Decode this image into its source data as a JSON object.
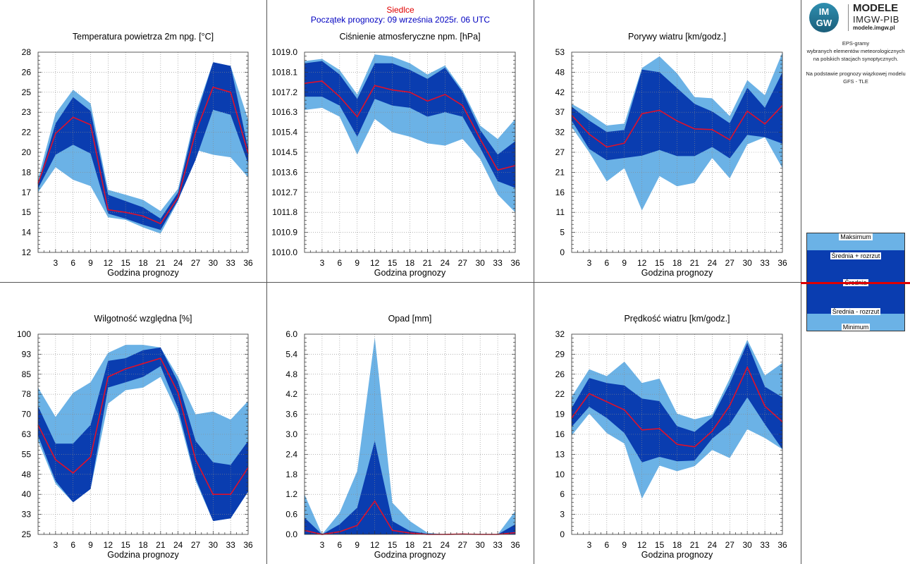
{
  "header": {
    "station": "Siedlce",
    "run": "Początek prognozy: 09 września 2025r. 06 UTC"
  },
  "logo": {
    "badge_top": "IM",
    "badge_bottom": "GW",
    "title": "MODELE",
    "subtitle": "IMGW-PIB",
    "url": "modele.imgw.pl"
  },
  "description": {
    "line1": "EPS-gramy",
    "line2": "wybranych elementów meteorologicznych",
    "line3": "na polskich stacjach  synoptycznych.",
    "line4": "Na podstawie prognozy wiązkowej modelu",
    "line5": "GFS - TLE"
  },
  "legend": {
    "max": "Maksimum",
    "plus": "Średnia + rozrzut",
    "mean": "Średnia",
    "minus": "Średnia - rozrzut",
    "min": "Minimum"
  },
  "colors": {
    "outer_band": "#6bb2e6",
    "inner_band": "#0a3db0",
    "mean_line": "#e0102a"
  },
  "chart_data": [
    {
      "type": "area",
      "title": "Temperatura powietrza 2m npg. [°C]",
      "xlabel": "Godzina prognozy",
      "ylim": [
        12,
        28
      ],
      "yticks": [
        "12",
        "14",
        "15",
        "17",
        "18",
        "20",
        "22",
        "23",
        "25",
        "26",
        "28"
      ],
      "ytick_values": [
        12,
        13.6,
        15.2,
        16.8,
        18.4,
        20,
        21.6,
        23.2,
        24.8,
        26.4,
        28
      ],
      "x": [
        0,
        3,
        6,
        9,
        12,
        15,
        18,
        21,
        24,
        27,
        30,
        33,
        36
      ],
      "xticks": [
        3,
        6,
        9,
        12,
        15,
        18,
        21,
        24,
        27,
        30,
        33,
        36
      ],
      "series": [
        {
          "name": "Maksimum",
          "values": [
            17.9,
            23.1,
            25.0,
            23.9,
            17.0,
            16.6,
            16.2,
            15.3,
            17.1,
            23.1,
            27.2,
            26.9,
            22.6
          ]
        },
        {
          "name": "Średnia + rozrzut",
          "values": [
            17.5,
            22.3,
            24.4,
            23.3,
            16.6,
            16.1,
            15.6,
            14.7,
            16.8,
            22.7,
            27.2,
            26.9,
            20.3
          ]
        },
        {
          "name": "Średnia",
          "values": [
            17.5,
            21.5,
            22.8,
            22.2,
            15.4,
            15.2,
            14.9,
            14.3,
            16.4,
            21.6,
            25.2,
            24.8,
            19.9
          ]
        },
        {
          "name": "Średnia - rozrzut",
          "values": [
            17.1,
            19.8,
            20.6,
            19.9,
            15.1,
            14.7,
            14.2,
            13.8,
            16.2,
            19.4,
            23.4,
            23.0,
            19.1
          ]
        },
        {
          "name": "Minimum",
          "values": [
            16.8,
            18.8,
            17.8,
            17.3,
            14.8,
            14.6,
            14.0,
            13.5,
            16.1,
            20.2,
            19.8,
            19.6,
            18.0
          ]
        }
      ]
    },
    {
      "type": "area",
      "title": "Ciśnienie atmosferyczne npm. [hPa]",
      "xlabel": "Godzina prognozy",
      "ylim": [
        1010.0,
        1019.0
      ],
      "yticks": [
        "1010.0",
        "1010.9",
        "1011.8",
        "1012.7",
        "1013.6",
        "1014.5",
        "1015.4",
        "1016.3",
        "1017.2",
        "1018.1",
        "1019.0"
      ],
      "ytick_values": [
        1010.0,
        1010.9,
        1011.8,
        1012.7,
        1013.6,
        1014.5,
        1015.4,
        1016.3,
        1017.2,
        1018.1,
        1019.0
      ],
      "x": [
        0,
        3,
        6,
        9,
        12,
        15,
        18,
        21,
        24,
        27,
        30,
        33,
        36
      ],
      "xticks": [
        3,
        6,
        9,
        12,
        15,
        18,
        21,
        24,
        27,
        30,
        33,
        36
      ],
      "series": [
        {
          "name": "Maksimum",
          "values": [
            1018.6,
            1018.7,
            1018.2,
            1017.1,
            1018.9,
            1018.8,
            1018.5,
            1018.0,
            1018.4,
            1017.3,
            1015.7,
            1015.1,
            1016.0
          ]
        },
        {
          "name": "Średnia + rozrzut",
          "values": [
            1018.5,
            1018.6,
            1018.0,
            1016.9,
            1018.5,
            1018.5,
            1018.2,
            1017.8,
            1018.3,
            1017.2,
            1015.5,
            1014.4,
            1015.0
          ]
        },
        {
          "name": "Średnia",
          "values": [
            1017.6,
            1017.7,
            1017.0,
            1016.1,
            1017.5,
            1017.3,
            1017.2,
            1016.8,
            1017.1,
            1016.6,
            1015.1,
            1013.7,
            1013.9
          ]
        },
        {
          "name": "Średnia - rozrzut",
          "values": [
            1017.0,
            1017.0,
            1016.6,
            1015.2,
            1016.9,
            1016.6,
            1016.5,
            1016.1,
            1016.3,
            1016.1,
            1014.7,
            1013.2,
            1012.9
          ]
        },
        {
          "name": "Minimum",
          "values": [
            1016.4,
            1016.5,
            1016.1,
            1014.4,
            1016.0,
            1015.4,
            1015.2,
            1014.9,
            1014.8,
            1015.1,
            1014.2,
            1012.6,
            1011.8
          ]
        }
      ]
    },
    {
      "type": "area",
      "title": "Porywy wiatru [km/godz.]",
      "xlabel": "Godzina prognozy",
      "ylim": [
        0,
        53
      ],
      "yticks": [
        "0",
        "5",
        "11",
        "16",
        "21",
        "27",
        "32",
        "37",
        "42",
        "48",
        "53"
      ],
      "ytick_values": [
        0,
        5.3,
        10.6,
        15.9,
        21.2,
        26.5,
        31.8,
        37.1,
        42.4,
        47.7,
        53
      ],
      "x": [
        0,
        3,
        6,
        9,
        12,
        15,
        18,
        21,
        24,
        27,
        30,
        33,
        36
      ],
      "xticks": [
        3,
        6,
        9,
        12,
        15,
        18,
        21,
        24,
        27,
        30,
        33,
        36
      ],
      "series": [
        {
          "name": "Maksimum",
          "values": [
            39.3,
            36.7,
            33.6,
            34.1,
            48.8,
            51.9,
            47.4,
            41.1,
            40.8,
            36.1,
            45.6,
            41.6,
            52.9
          ]
        },
        {
          "name": "Średnia + rozrzut",
          "values": [
            38.6,
            34.9,
            31.9,
            32.4,
            48.4,
            47.7,
            43.5,
            39.3,
            37.3,
            34.2,
            43.6,
            38.3,
            47.7
          ]
        },
        {
          "name": "Średnia",
          "values": [
            36.3,
            31.3,
            27.9,
            28.9,
            36.7,
            37.6,
            34.8,
            32.7,
            32.5,
            29.8,
            37.4,
            34.0,
            38.9
          ]
        },
        {
          "name": "Średnia - rozrzut",
          "values": [
            34.9,
            27.4,
            24.4,
            25.0,
            25.6,
            27.1,
            25.5,
            25.5,
            27.9,
            24.9,
            31.1,
            30.5,
            28.8
          ]
        },
        {
          "name": "Minimum",
          "values": [
            33.2,
            26.5,
            18.8,
            22.3,
            11.1,
            20.2,
            17.5,
            18.4,
            25.0,
            19.6,
            28.6,
            30.5,
            22.3
          ]
        }
      ]
    },
    {
      "type": "area",
      "title": "Wilgotność względna [%]",
      "xlabel": "Godzina prognozy",
      "ylim": [
        25,
        100
      ],
      "yticks": [
        "25",
        "33",
        "40",
        "48",
        "55",
        "63",
        "70",
        "78",
        "85",
        "93",
        "100"
      ],
      "ytick_values": [
        25,
        32.5,
        40,
        47.5,
        55,
        62.5,
        70,
        77.5,
        85,
        92.5,
        100
      ],
      "x": [
        0,
        3,
        6,
        9,
        12,
        15,
        18,
        21,
        24,
        27,
        30,
        33,
        36
      ],
      "xticks": [
        3,
        6,
        9,
        12,
        15,
        18,
        21,
        24,
        27,
        30,
        33,
        36
      ],
      "series": [
        {
          "name": "Maksimum",
          "values": [
            80,
            69,
            78,
            82,
            93,
            96,
            96,
            95,
            84,
            70,
            71,
            68,
            75
          ]
        },
        {
          "name": "Średnia + rozrzut",
          "values": [
            73,
            59,
            59,
            66,
            90,
            91,
            94,
            95,
            82,
            60,
            52,
            51,
            60
          ]
        },
        {
          "name": "Średnia",
          "values": [
            66,
            53,
            48,
            54,
            84,
            87,
            89,
            91,
            78,
            53,
            40,
            40,
            50
          ]
        },
        {
          "name": "Średnia - rozrzut",
          "values": [
            62,
            45,
            37,
            42,
            80,
            82,
            84,
            88,
            72,
            46,
            30,
            31,
            41
          ]
        },
        {
          "name": "Minimum",
          "values": [
            60,
            44,
            37,
            42,
            74,
            79,
            80,
            84,
            70,
            45,
            30,
            31,
            41
          ]
        }
      ]
    },
    {
      "type": "area",
      "title": "Opad [mm]",
      "xlabel": "Godzina prognozy",
      "ylim": [
        0,
        6.0
      ],
      "yticks": [
        "0.0",
        "0.6",
        "1.2",
        "1.8",
        "2.4",
        "3.0",
        "3.6",
        "4.2",
        "4.8",
        "5.4",
        "6.0"
      ],
      "ytick_values": [
        0,
        0.6,
        1.2,
        1.8,
        2.4,
        3.0,
        3.6,
        4.2,
        4.8,
        5.4,
        6.0
      ],
      "x": [
        0,
        3,
        6,
        9,
        12,
        15,
        18,
        21,
        24,
        27,
        30,
        33,
        36
      ],
      "xticks": [
        3,
        6,
        9,
        12,
        15,
        18,
        21,
        24,
        27,
        30,
        33,
        36
      ],
      "series": [
        {
          "name": "Maksimum",
          "values": [
            1.2,
            0.0,
            0.65,
            1.9,
            5.9,
            0.95,
            0.4,
            0.05,
            0.0,
            0.03,
            0.0,
            0.0,
            0.7
          ]
        },
        {
          "name": "Średnia + rozrzut",
          "values": [
            0.5,
            0.0,
            0.3,
            0.8,
            2.8,
            0.4,
            0.1,
            0.02,
            0.0,
            0.01,
            0.0,
            0.0,
            0.3
          ]
        },
        {
          "name": "Średnia",
          "values": [
            0.12,
            0.0,
            0.08,
            0.27,
            1.0,
            0.12,
            0.04,
            0.0,
            0.0,
            0.01,
            0.0,
            0.0,
            0.05
          ]
        },
        {
          "name": "Średnia - rozrzut",
          "values": [
            0.0,
            0.0,
            0.0,
            0.0,
            0.0,
            0.0,
            0.0,
            0.0,
            0.0,
            0.0,
            0.0,
            0.0,
            0.0
          ]
        },
        {
          "name": "Minimum",
          "values": [
            0.0,
            0.0,
            0.0,
            0.0,
            0.0,
            0.0,
            0.0,
            0.0,
            0.0,
            0.0,
            0.0,
            0.0,
            0.0
          ]
        }
      ]
    },
    {
      "type": "area",
      "title": "Prędkość wiatru [km/godz.]",
      "xlabel": "Godzina prognozy",
      "ylim": [
        0,
        32
      ],
      "yticks": [
        "0",
        "3",
        "6",
        "10",
        "13",
        "16",
        "19",
        "22",
        "26",
        "29",
        "32"
      ],
      "ytick_values": [
        0,
        3.2,
        6.4,
        9.6,
        12.8,
        16.0,
        19.2,
        22.4,
        25.6,
        28.8,
        32
      ],
      "x": [
        0,
        3,
        6,
        9,
        12,
        15,
        18,
        21,
        24,
        27,
        30,
        33,
        36
      ],
      "xticks": [
        3,
        6,
        9,
        12,
        15,
        18,
        21,
        24,
        27,
        30,
        33,
        36
      ],
      "series": [
        {
          "name": "Maksimum",
          "values": [
            22.0,
            26.4,
            25.3,
            27.6,
            24.2,
            24.9,
            19.3,
            18.4,
            19.1,
            24.9,
            31.1,
            25.4,
            27.4
          ]
        },
        {
          "name": "Średnia + rozrzut",
          "values": [
            20.2,
            25.0,
            24.2,
            23.8,
            21.7,
            21.3,
            17.3,
            16.4,
            18.7,
            24.1,
            30.6,
            23.6,
            21.9
          ]
        },
        {
          "name": "Średnia",
          "values": [
            18.6,
            22.5,
            21.2,
            19.9,
            16.7,
            16.9,
            14.4,
            14.0,
            16.5,
            20.6,
            26.7,
            20.5,
            18.0
          ]
        },
        {
          "name": "Średnia - rozrzut",
          "values": [
            17.2,
            20.4,
            18.6,
            16.2,
            11.5,
            12.4,
            11.7,
            11.8,
            15.3,
            17.6,
            21.9,
            17.6,
            13.6
          ]
        },
        {
          "name": "Minimum",
          "values": [
            15.8,
            19.3,
            16.2,
            14.5,
            5.7,
            11.0,
            10.1,
            10.9,
            13.5,
            12.2,
            16.8,
            15.4,
            13.6
          ]
        }
      ]
    }
  ]
}
